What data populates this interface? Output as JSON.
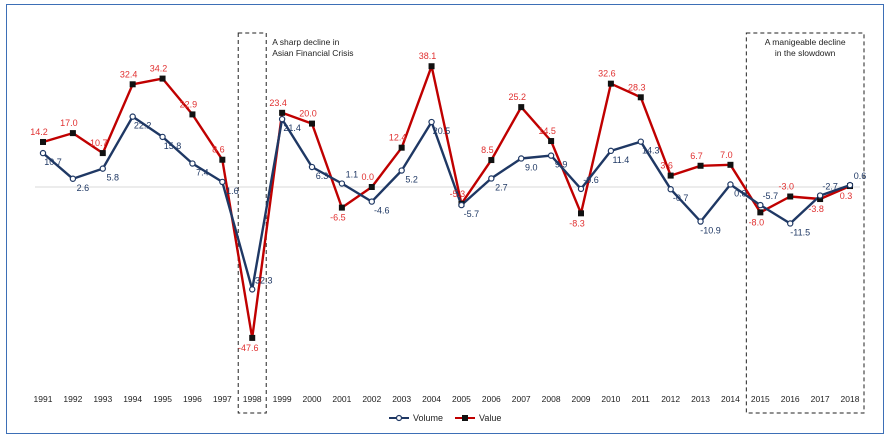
{
  "chart_data": {
    "type": "line",
    "title": "",
    "xlabel": "",
    "ylabel": "",
    "x": [
      "1991",
      "1992",
      "1993",
      "1994",
      "1995",
      "1996",
      "1997",
      "1998",
      "1999",
      "2000",
      "2001",
      "2002",
      "2003",
      "2004",
      "2005",
      "2006",
      "2007",
      "2008",
      "2009",
      "2010",
      "2011",
      "2012",
      "2013",
      "2014",
      "2015",
      "2016",
      "2017",
      "2018"
    ],
    "series": [
      {
        "name": "Volume",
        "color": "#1f3864",
        "marker": "hollow-circle",
        "values": [
          10.7,
          2.6,
          5.8,
          22.2,
          15.8,
          7.4,
          1.6,
          -32.3,
          21.4,
          6.3,
          1.1,
          -4.6,
          5.2,
          20.5,
          -5.7,
          2.7,
          9.0,
          9.9,
          -0.6,
          11.4,
          14.3,
          -0.7,
          -10.9,
          0.8,
          -5.7,
          -11.5,
          -2.7,
          0.6
        ],
        "labels": [
          "10.7",
          "2.6",
          "5.8",
          "22.2",
          "15.8",
          "7.4",
          "1.6",
          "-32.3",
          "21.4",
          "6.3",
          "1.1",
          "-4.6",
          "5.2",
          "20.5",
          "-5.7",
          "2.7",
          "9.0",
          "9.9",
          "-0.6",
          "11.4",
          "14.3",
          "-0.7",
          "-10.9",
          "0.8",
          "-5.7",
          "-11.5",
          "-2.7",
          "0.6"
        ]
      },
      {
        "name": "Value",
        "color": "#c00000",
        "marker": "filled-square",
        "values": [
          14.2,
          17.0,
          10.7,
          32.4,
          34.2,
          22.9,
          8.6,
          -47.6,
          23.4,
          20.0,
          -6.5,
          0.0,
          12.4,
          38.1,
          -5.3,
          8.5,
          25.2,
          14.5,
          -8.3,
          32.6,
          28.3,
          3.6,
          6.7,
          7.0,
          -8.0,
          -3.0,
          -3.8,
          0.3
        ],
        "labels": [
          "14.2",
          "17.0",
          "10.7",
          "32.4",
          "34.2",
          "22.9",
          "8.6",
          "-47.6",
          "23.4",
          "20.0",
          "-6.5",
          "0.0",
          "12.4",
          "38.1",
          "-5.3",
          "8.5",
          "25.2",
          "14.5",
          "-8.3",
          "32.6",
          "28.3",
          "3.6",
          "6.7",
          "7.0",
          "-8.0",
          "-3.0",
          "-3.8",
          "0.3"
        ]
      }
    ],
    "ylim": [
      -60,
      50
    ],
    "grid": false,
    "zero_line": true,
    "legend": "bottom-center",
    "annotations": [
      {
        "text": [
          "A sharp decline in",
          "Asian Financial Crisis"
        ],
        "years": [
          "1998"
        ]
      },
      {
        "text": [
          "A manigeable decline",
          "in the slowdown"
        ],
        "years": [
          "2015",
          "2018"
        ]
      }
    ]
  }
}
